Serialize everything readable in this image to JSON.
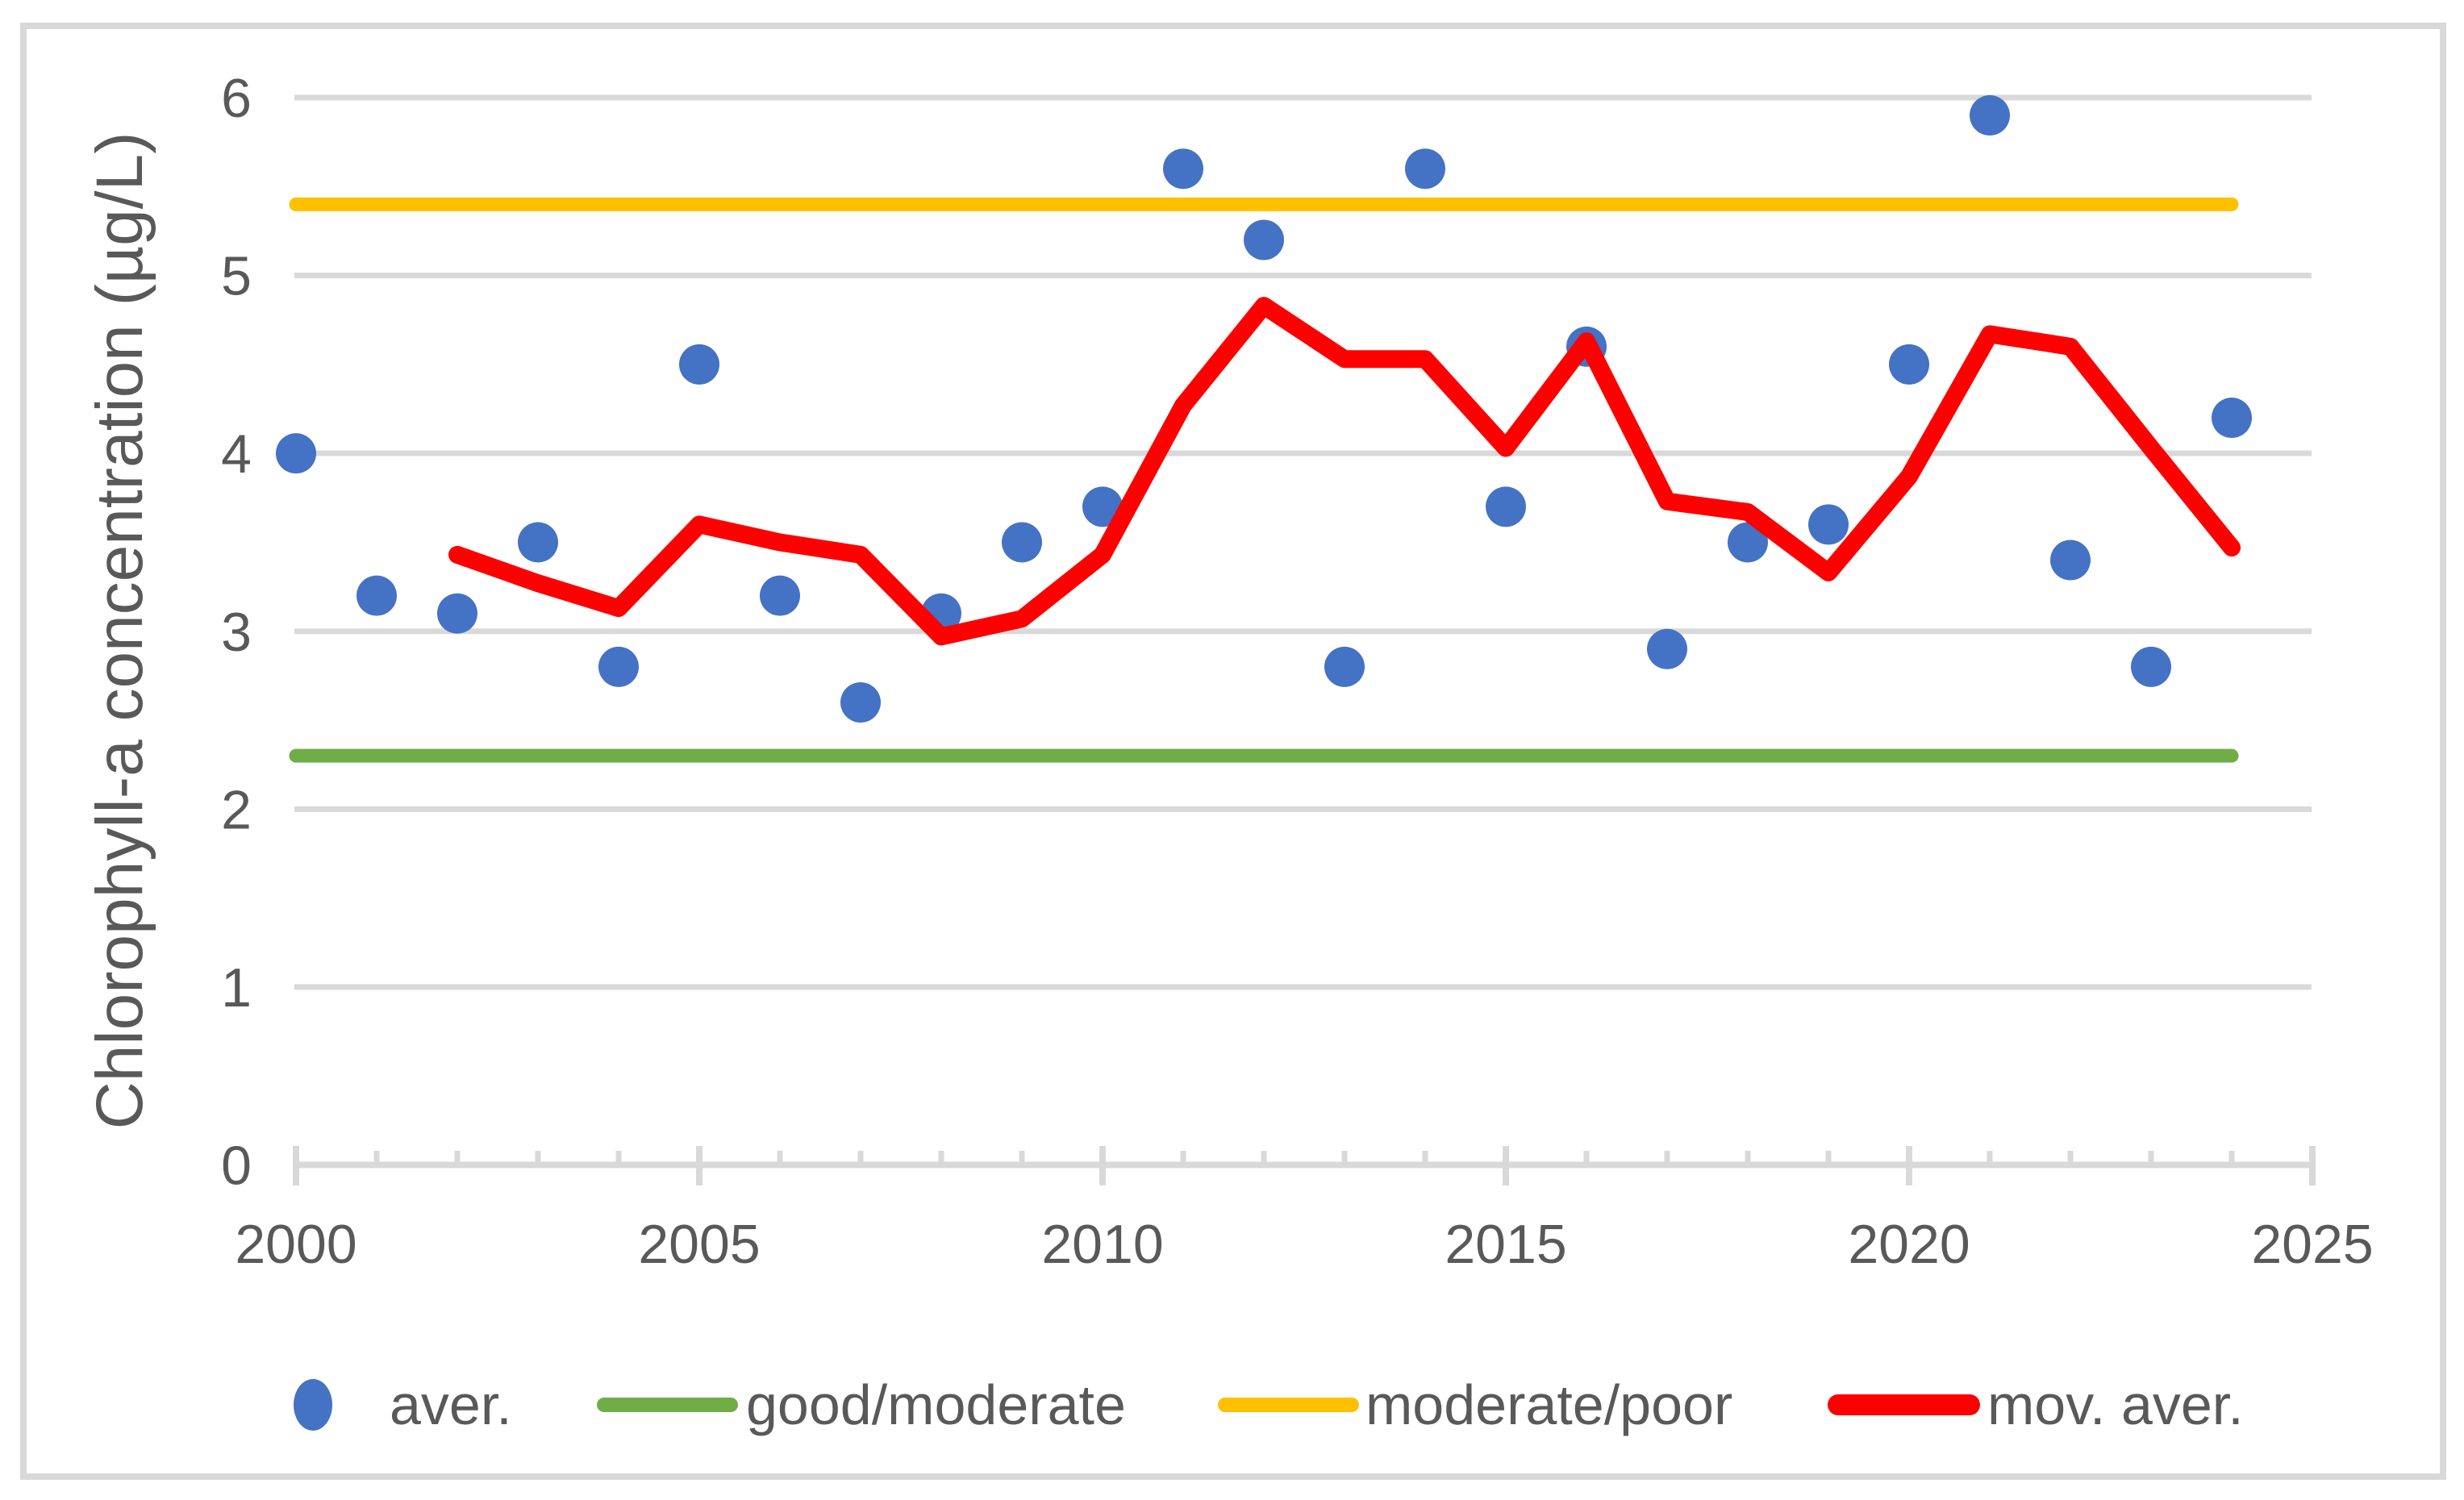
{
  "chart_data": {
    "type": "scatter",
    "title": "",
    "xlabel": "",
    "ylabel": "Chlorophyll-a concentration (µg/L)",
    "xlim": [
      2000,
      2025
    ],
    "ylim": [
      0,
      6
    ],
    "xticks_major": [
      2000,
      2005,
      2010,
      2015,
      2020,
      2025
    ],
    "xticks_minor_every": 1,
    "yticks": [
      0,
      1,
      2,
      3,
      4,
      5,
      6
    ],
    "grid": "horizontal",
    "legend_position": "bottom",
    "series": [
      {
        "name": "aver.",
        "type": "scatter",
        "color": "#4472C4",
        "x": [
          2000,
          2001,
          2002,
          2003,
          2004,
          2005,
          2006,
          2007,
          2008,
          2009,
          2010,
          2011,
          2012,
          2013,
          2014,
          2015,
          2016,
          2017,
          2018,
          2019,
          2020,
          2021,
          2022,
          2023,
          2024
        ],
        "y": [
          4.0,
          3.2,
          3.1,
          3.5,
          2.8,
          4.5,
          3.2,
          2.6,
          3.1,
          3.5,
          3.7,
          5.6,
          5.2,
          2.8,
          5.6,
          3.7,
          4.6,
          2.9,
          3.5,
          3.6,
          4.5,
          5.9,
          3.4,
          2.8,
          4.2
        ]
      },
      {
        "name": "good/moderate",
        "type": "hline",
        "color": "#70AD47",
        "value": 2.3,
        "x_span": [
          2000,
          2024
        ]
      },
      {
        "name": "moderate/poor",
        "type": "hline",
        "color": "#FFC000",
        "value": 5.4,
        "x_span": [
          2000,
          2024
        ]
      },
      {
        "name": "mov. aver.",
        "type": "line",
        "color": "#FF0000",
        "x": [
          2002,
          2003,
          2004,
          2005,
          2006,
          2007,
          2008,
          2009,
          2010,
          2011,
          2012,
          2013,
          2014,
          2015,
          2016,
          2017,
          2018,
          2019,
          2020,
          2021,
          2022,
          2023,
          2024
        ],
        "y": [
          3.43,
          3.27,
          3.13,
          3.6,
          3.5,
          3.43,
          2.97,
          3.07,
          3.43,
          4.27,
          4.83,
          4.53,
          4.53,
          4.03,
          4.63,
          3.73,
          3.67,
          3.33,
          3.87,
          4.67,
          4.6,
          4.03,
          3.47
        ]
      }
    ],
    "legend": {
      "entries": [
        {
          "label": "aver.",
          "marker": "circle",
          "color": "#4472C4"
        },
        {
          "label": "good/moderate",
          "marker": "line",
          "color": "#70AD47"
        },
        {
          "label": "moderate/poor",
          "marker": "line",
          "color": "#FFC000"
        },
        {
          "label": "mov. aver.",
          "marker": "line",
          "color": "#FF0000"
        }
      ]
    },
    "colors": {
      "gridline": "#D9D9D9",
      "axis": "#D9D9D9",
      "border": "#D9D9D9",
      "text": "#595959",
      "background": "#FFFFFF"
    }
  }
}
